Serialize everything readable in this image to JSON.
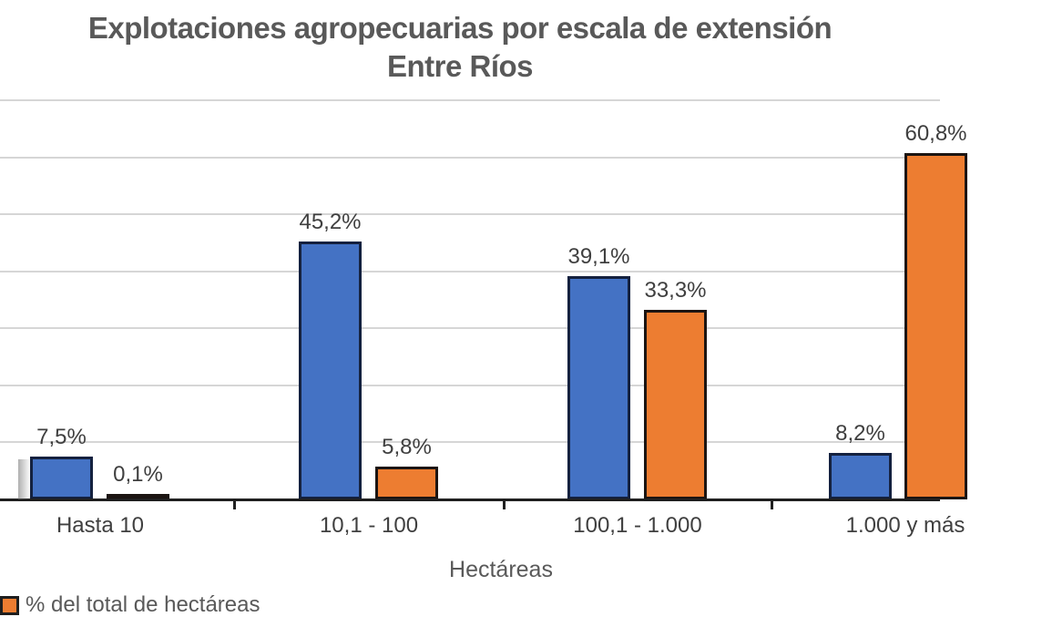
{
  "title": {
    "line1": "Explotaciones agropecuarias por escala de extensión",
    "line2": "Entre Ríos"
  },
  "chart_data": {
    "type": "bar",
    "title": "Explotaciones agropecuarias por escala de extensión",
    "subtitle": "Entre Ríos",
    "xlabel": "Hectáreas",
    "ylabel": "",
    "ylim": [
      0,
      70
    ],
    "grid": true,
    "grid_step_pct": 10,
    "legend_position": "bottom",
    "categories": [
      "Hasta 10",
      "10,1 - 100",
      "100,1 - 1.000",
      "1.000 y más"
    ],
    "series": [
      {
        "name": "",
        "color": "#4472C4",
        "border_color": "#14213F",
        "values": [
          7.5,
          45.2,
          39.1,
          8.2
        ],
        "labels": [
          "7,5%",
          "45,2%",
          "39,1%",
          "8,2%"
        ]
      },
      {
        "name": "% del total de hectáreas",
        "color": "#ED7D31",
        "border_color": "#1C1512",
        "values": [
          0.1,
          5.8,
          33.3,
          60.8
        ],
        "labels": [
          "0,1%",
          "5,8%",
          "33,3%",
          "60,8%"
        ]
      }
    ]
  },
  "legend": {
    "items": [
      {
        "label": "% del total de hectáreas",
        "color": "#ED7D31"
      }
    ]
  },
  "colors": {
    "grid": "#d6d6d6",
    "axis": "#1f1f1f",
    "title_text": "#595959",
    "label_text": "#3f3f3f",
    "blue": "#4472C4",
    "orange": "#ED7D31"
  }
}
